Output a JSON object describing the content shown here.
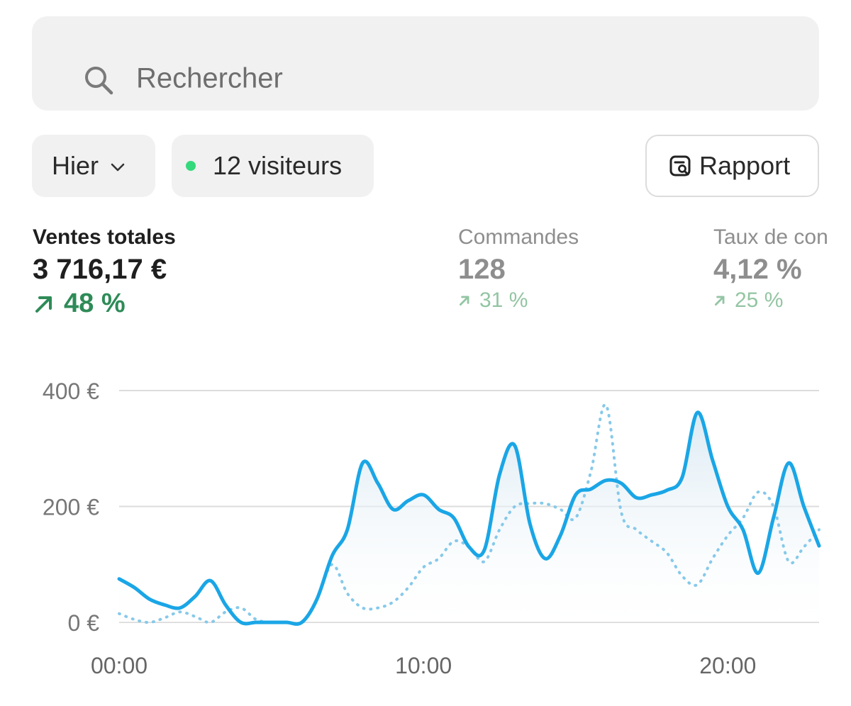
{
  "search": {
    "placeholder": "Rechercher",
    "icon": "search-icon"
  },
  "filters": {
    "date_label": "Hier",
    "visitors_label": "12 visiteurs",
    "visitors_dot_color": "#34d97b",
    "report_label": "Rapport"
  },
  "metrics": [
    {
      "label": "Ventes totales",
      "value": "3 716,17 €",
      "change": "48 %"
    },
    {
      "label": "Commandes",
      "value": "128",
      "change": "31 %"
    },
    {
      "label": "Taux de con",
      "value": "4,12 %",
      "change": "25 %"
    }
  ],
  "chart_data": {
    "type": "line",
    "x": [
      0,
      0.5,
      1,
      1.5,
      2,
      2.5,
      3,
      3.5,
      4,
      4.5,
      5,
      5.5,
      6,
      6.5,
      7,
      7.5,
      8,
      8.5,
      9,
      9.5,
      10,
      10.5,
      11,
      11.5,
      12,
      12.5,
      13,
      13.5,
      14,
      14.5,
      15,
      15.5,
      16,
      16.5,
      17,
      17.5,
      18,
      18.5,
      19,
      19.5,
      20,
      20.5,
      21,
      21.5,
      22,
      22.5,
      23
    ],
    "series": [
      {
        "values": [
          75,
          60,
          40,
          30,
          25,
          45,
          72,
          30,
          0,
          0,
          0,
          0,
          0,
          40,
          115,
          160,
          275,
          240,
          195,
          210,
          220,
          195,
          180,
          130,
          125,
          255,
          305,
          170,
          110,
          150,
          220,
          230,
          245,
          240,
          215,
          220,
          228,
          250,
          362,
          280,
          200,
          160,
          85,
          180,
          275,
          200,
          132
        ],
        "color": "#1aa6e6",
        "style": "solid"
      },
      {
        "values": [
          15,
          5,
          0,
          8,
          18,
          10,
          0,
          18,
          25,
          5,
          0,
          0,
          0,
          40,
          100,
          50,
          25,
          25,
          35,
          60,
          95,
          110,
          140,
          130,
          105,
          160,
          200,
          205,
          205,
          195,
          180,
          260,
          375,
          190,
          160,
          140,
          120,
          80,
          65,
          110,
          150,
          180,
          225,
          200,
          105,
          130,
          160
        ],
        "color": "#86c9ea",
        "style": "dotted"
      }
    ],
    "y_ticks": [
      "400 €",
      "200 €",
      "0 €"
    ],
    "x_ticks": [
      "00:00",
      "10:00",
      "20:00"
    ],
    "ylim": [
      0,
      400
    ],
    "xlim": [
      0,
      23
    ],
    "grid": true
  }
}
